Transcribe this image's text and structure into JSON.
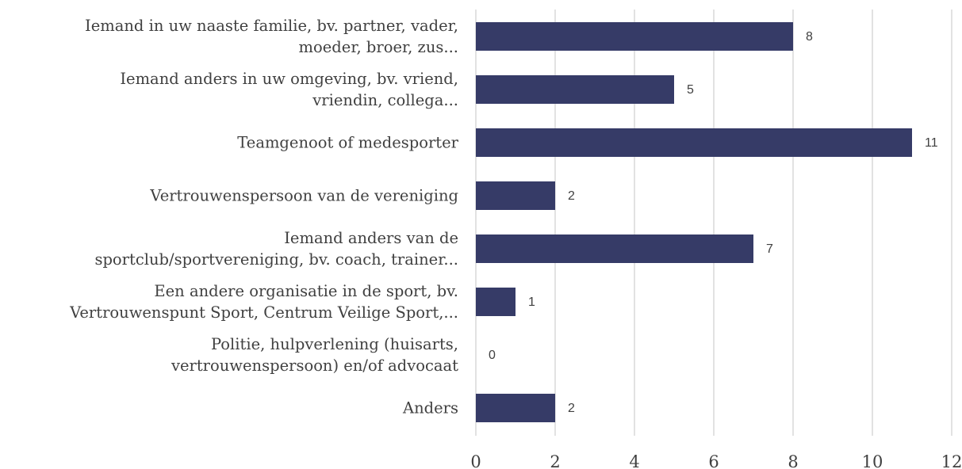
{
  "chart_data": {
    "type": "bar",
    "orientation": "horizontal",
    "categories": [
      "Iemand in uw naaste familie, bv. partner, vader,\nmoeder, broer, zus...",
      "Iemand anders in uw omgeving, bv. vriend,\nvriendin, collega...",
      "Teamgenoot of medesporter",
      "Vertrouwenspersoon van de vereniging",
      "Iemand anders van de\nsportclub/sportvereniging, bv. coach, trainer...",
      "Een andere organisatie in de sport, bv.\nVertrouwenspunt Sport, Centrum Veilige Sport,...",
      "Politie, hulpverlening (huisarts,\nvertrouwenspersoon) en/of advocaat",
      "Anders"
    ],
    "values": [
      8,
      5,
      11,
      2,
      7,
      1,
      0,
      2
    ],
    "color": "#363b67",
    "xlim": [
      0,
      12
    ],
    "xticks": [
      0,
      2,
      4,
      6,
      8,
      10,
      12
    ],
    "grid": true
  }
}
